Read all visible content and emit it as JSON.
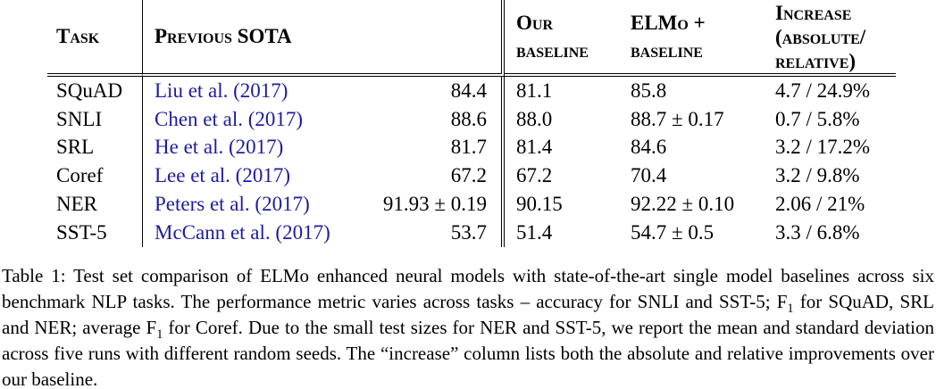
{
  "table": {
    "header": {
      "task": "Task",
      "previous_sota": "Previous SOTA",
      "our_baseline": [
        "Our",
        "baseline"
      ],
      "elmo_baseline": [
        "ELMo +",
        "baseline"
      ],
      "increase": [
        "Increase",
        "(absolute/",
        "relative)"
      ]
    },
    "rows": [
      {
        "task": "SQuAD",
        "citation": "Liu et al. (2017)",
        "sota": "84.4",
        "our": "81.1",
        "elmo": "85.8",
        "increase": "4.7 / 24.9%"
      },
      {
        "task": "SNLI",
        "citation": "Chen et al. (2017)",
        "sota": "88.6",
        "our": "88.0",
        "elmo": "88.7 ± 0.17",
        "increase": "0.7 / 5.8%"
      },
      {
        "task": "SRL",
        "citation": "He et al. (2017)",
        "sota": "81.7",
        "our": "81.4",
        "elmo": "84.6",
        "increase": "3.2 / 17.2%"
      },
      {
        "task": "Coref",
        "citation": "Lee et al. (2017)",
        "sota": "67.2",
        "our": "67.2",
        "elmo": "70.4",
        "increase": "3.2 / 9.8%"
      },
      {
        "task": "NER",
        "citation": "Peters et al. (2017)",
        "sota": "91.93 ± 0.19",
        "our": "90.15",
        "elmo": "92.22 ± 0.10",
        "increase": "2.06 / 21%"
      },
      {
        "task": "SST-5",
        "citation": "McCann et al. (2017)",
        "sota": "53.7",
        "our": "51.4",
        "elmo": "54.7 ± 0.5",
        "increase": "3.3 / 6.8%"
      }
    ]
  },
  "caption": {
    "part1": "Table 1: Test set comparison of ELMo enhanced neural models with state-of-the-art single model baselines across six benchmark NLP tasks. The performance metric varies across tasks – accuracy for SNLI and SST-5; F",
    "sub1": "1",
    "part2": " for SQuAD, SRL and NER; average F",
    "sub2": "1",
    "part3": " for Coref. Due to the small test sizes for NER and SST-5, we report the mean and standard deviation across five runs with different random seeds. The “increase” column lists both the absolute and relative improvements over our baseline."
  },
  "colors": {
    "citation_link": "#1c1ca0",
    "text": "#000000",
    "background": "#ffffff"
  }
}
